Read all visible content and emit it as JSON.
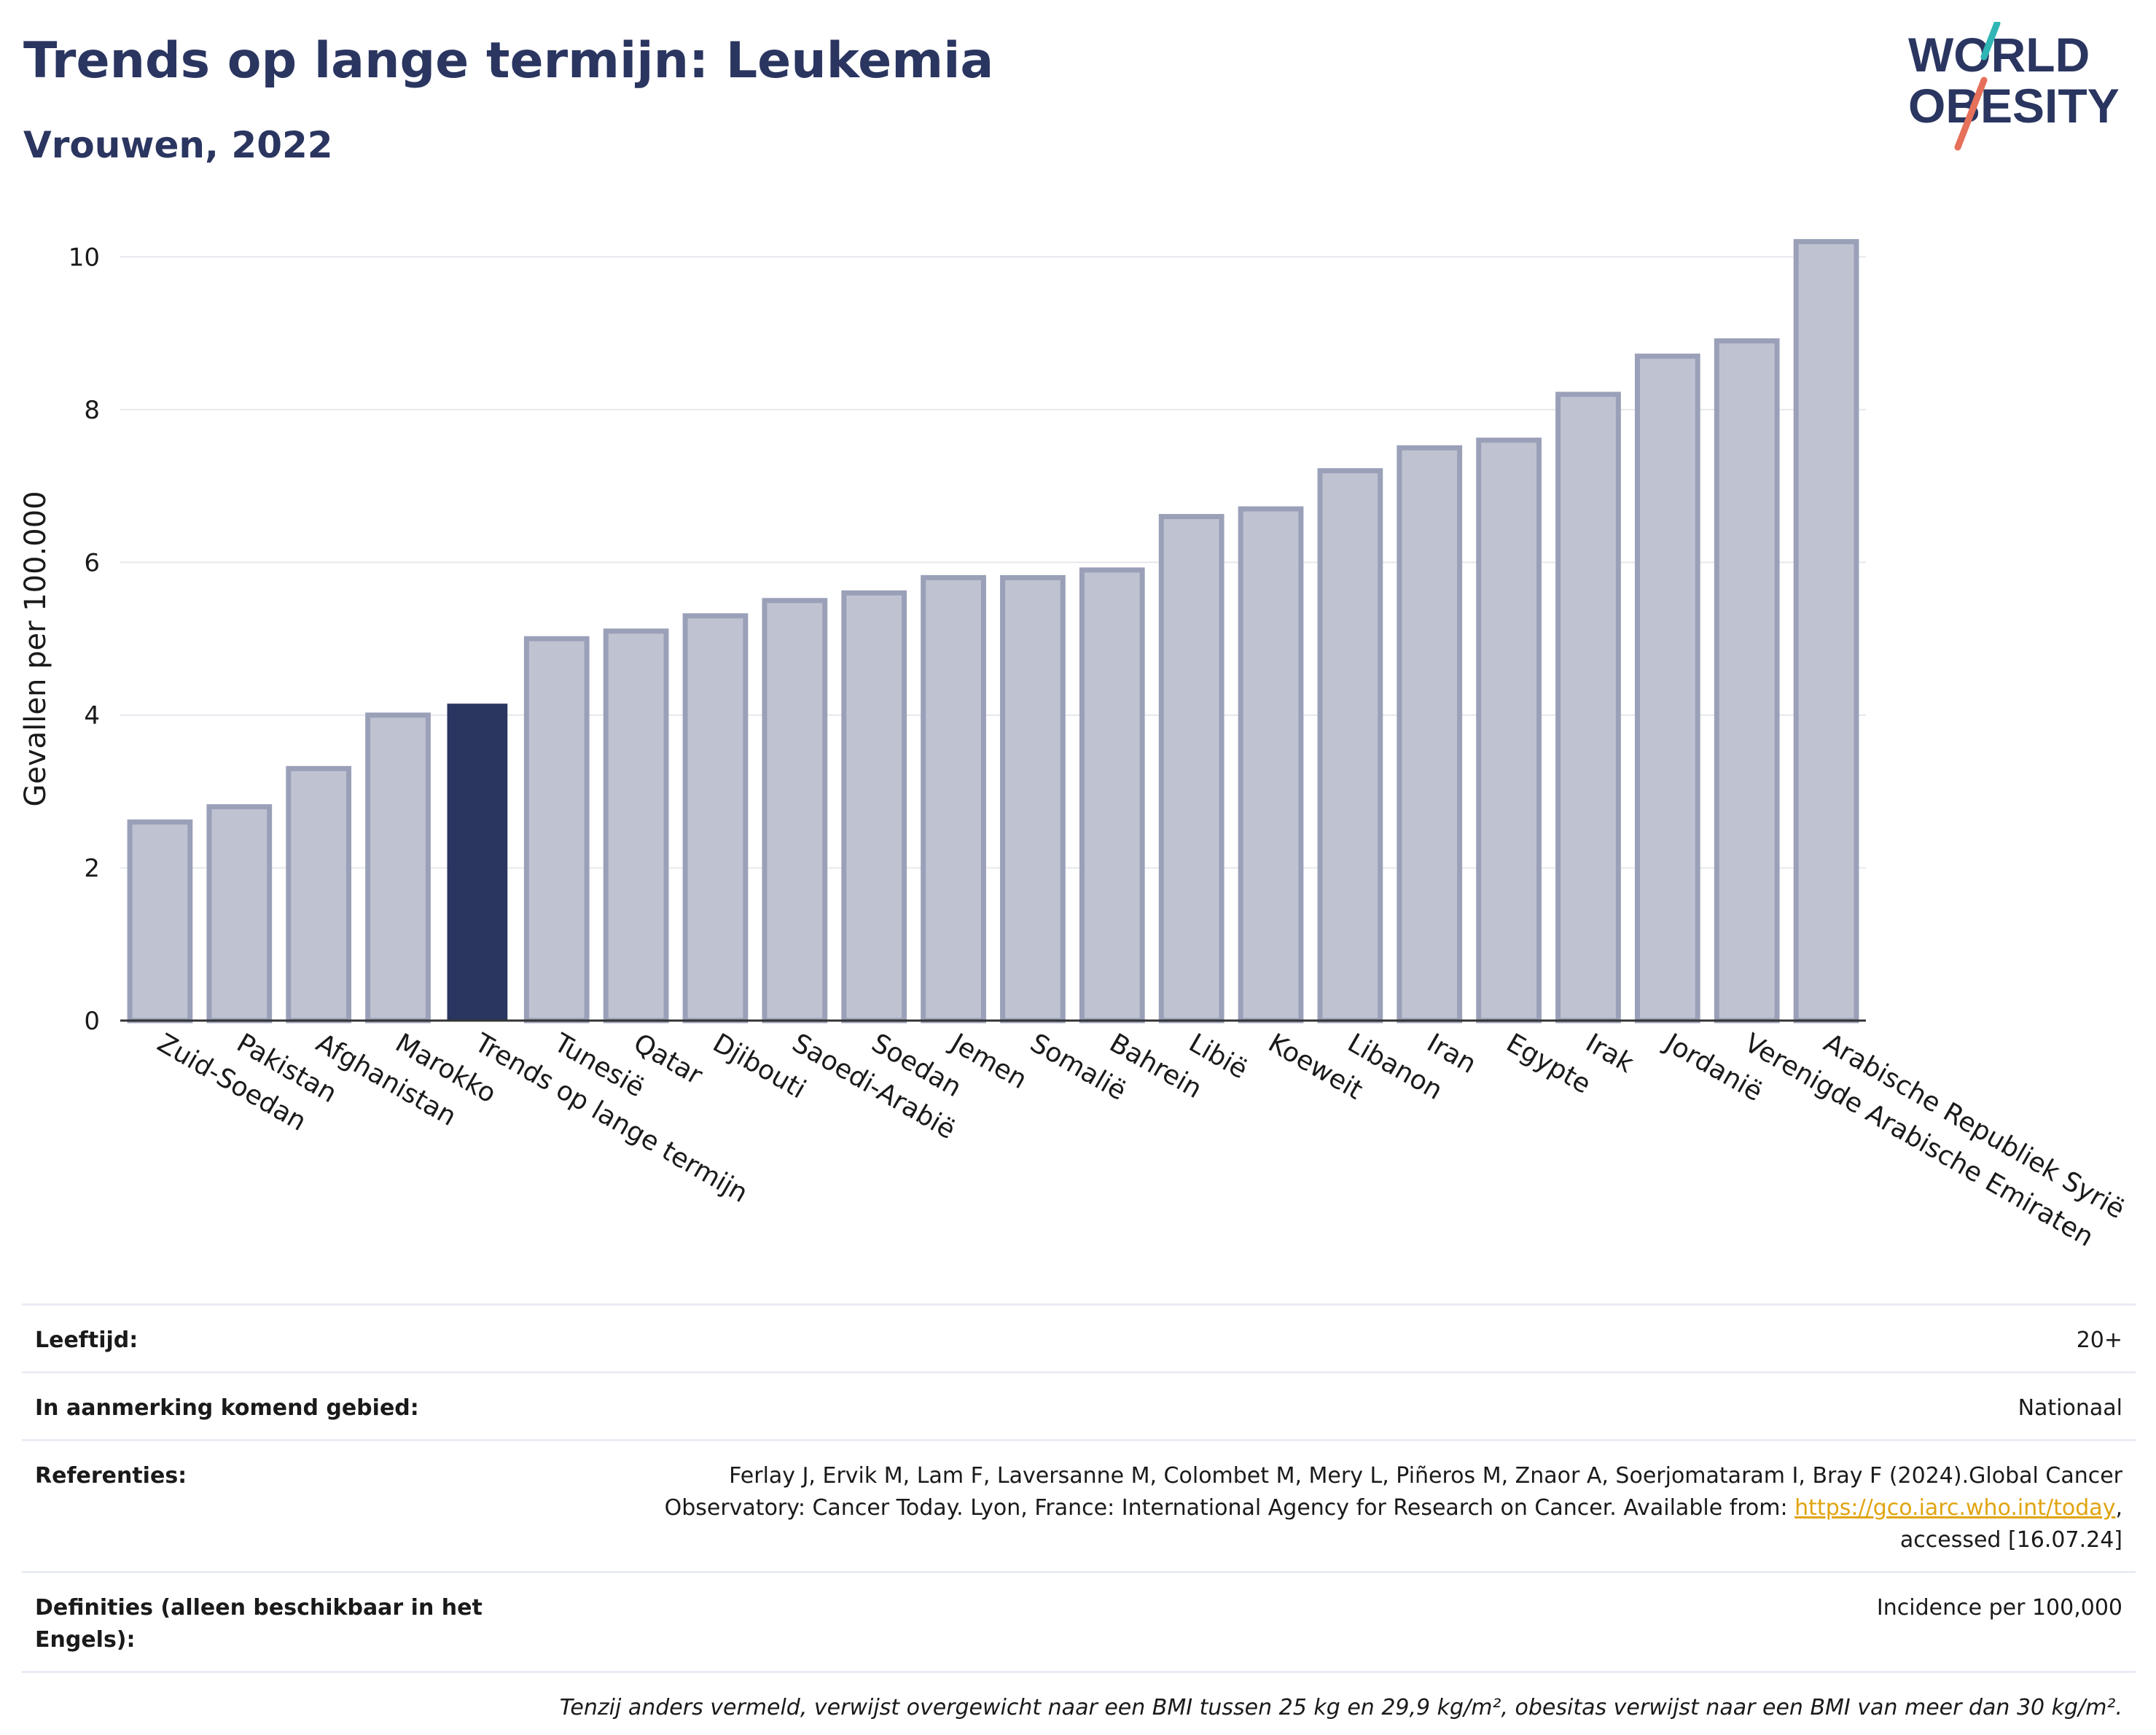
{
  "header": {
    "title": "Trends op lange termijn: Leukemia",
    "subtitle": "Vrouwen, 2022"
  },
  "logo": {
    "line1": "WORLD",
    "line2": "OBESITY",
    "colors": {
      "text": "#2a3560",
      "slash_top": "#2fb5b3",
      "slash_bottom": "#e6705a"
    }
  },
  "chart_data": {
    "type": "bar",
    "title": "Trends op lange termijn: Leukemia",
    "subtitle": "Vrouwen, 2022",
    "xlabel": "",
    "ylabel": "Gevallen per 100.000",
    "ylim": [
      0,
      10.5
    ],
    "yticks": [
      0,
      2,
      4,
      6,
      8,
      10
    ],
    "grid": true,
    "highlight": "Trends op lange termijn",
    "colors": {
      "bar": "#bfc3d1",
      "bar_border": "#9aa0b8",
      "highlight": "#2a3560"
    },
    "categories": [
      "Zuid-Soedan",
      "Pakistan",
      "Afghanistan",
      "Marokko",
      "Trends op lange termijn",
      "Tunesië",
      "Qatar",
      "Djibouti",
      "Saoedi-Arabië",
      "Soedan",
      "Jemen",
      "Somalië",
      "Bahrein",
      "Libië",
      "Koeweit",
      "Libanon",
      "Iran",
      "Egypte",
      "Irak",
      "Jordanië",
      "Verenigde Arabische Emiraten",
      "Arabische Republiek Syrië"
    ],
    "values": [
      2.6,
      2.8,
      3.3,
      4.0,
      4.15,
      5.0,
      5.1,
      5.3,
      5.5,
      5.6,
      5.8,
      5.8,
      5.9,
      6.6,
      6.7,
      7.2,
      7.5,
      7.6,
      8.2,
      8.7,
      8.9,
      10.2
    ]
  },
  "info": {
    "age": {
      "label": "Leeftijd:",
      "value": "20+"
    },
    "area": {
      "label": "In aanmerking komend gebied:",
      "value": "Nationaal"
    },
    "references": {
      "label": "Referenties:",
      "line1": "Ferlay J, Ervik M, Lam F, Laversanne M, Colombet M, Mery L, Piñeros M, Znaor A, Soerjomataram I, Bray F (2024).Global Cancer",
      "line2_pre": "Observatory: Cancer Today. Lyon, France: International Agency for Research on Cancer. Available from: ",
      "link": "https://gco.iarc.who.int/today",
      "line2_post": ",",
      "line3": "accessed [16.07.24]"
    },
    "definitions": {
      "label": "Definities (alleen beschikbaar in het Engels):",
      "value": "Incidence per 100,000"
    },
    "note": "Tenzij anders vermeld, verwijst overgewicht naar een BMI tussen 25 kg en 29,9 kg/m², obesitas verwijst naar een BMI van meer dan 30 kg/m²."
  }
}
